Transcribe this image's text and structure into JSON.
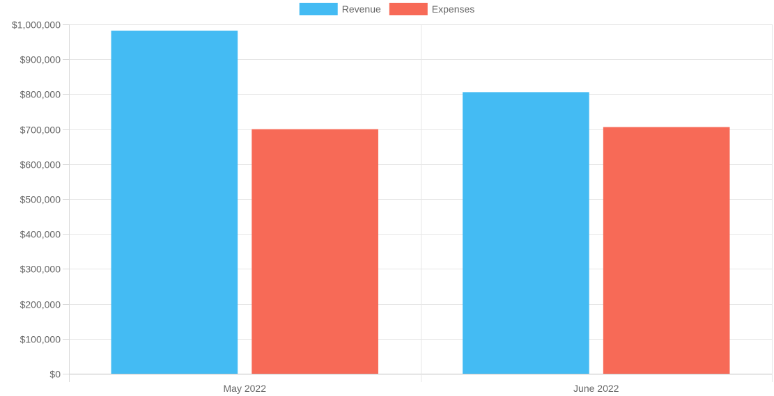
{
  "chart_data": {
    "type": "bar",
    "categories": [
      "May 2022",
      "June 2022"
    ],
    "series": [
      {
        "name": "Revenue",
        "values": [
          982000,
          806000
        ],
        "color": "#44BBF3"
      },
      {
        "name": "Expenses",
        "values": [
          700000,
          706000
        ],
        "color": "#F76A57"
      }
    ],
    "ylim": [
      0,
      1000000
    ],
    "yticks": [
      0,
      100000,
      200000,
      300000,
      400000,
      500000,
      600000,
      700000,
      800000,
      900000,
      1000000
    ],
    "ytick_labels": [
      "$0",
      "$100,000",
      "$200,000",
      "$300,000",
      "$400,000",
      "$500,000",
      "$600,000",
      "$700,000",
      "$800,000",
      "$900,000",
      "$1,000,000"
    ],
    "legend_position": "top",
    "grid": true,
    "title": "",
    "xlabel": "",
    "ylabel": ""
  }
}
